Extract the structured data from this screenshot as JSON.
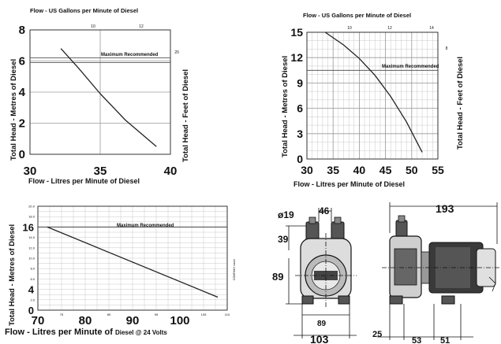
{
  "chart_data": [
    {
      "type": "line",
      "title": "Flow - US Gallons per Minute of Diesel",
      "xlabel": "Flow - Litres per Minute of Diesel",
      "ylabel": "Total Head - Metres of Diesel",
      "y2label": "Total Head - Feet of Diesel",
      "xlim": [
        30,
        40
      ],
      "ylim": [
        0,
        8
      ],
      "x_ticks": [
        "30",
        "35",
        "40"
      ],
      "y_ticks": [
        "0",
        "2",
        "4",
        "6",
        "8"
      ],
      "top_ticks": [
        "10",
        "12"
      ],
      "right_ticks": [
        "20"
      ],
      "recommended_label": "Maximum Recommended",
      "recommended_y": 6.2,
      "series": [
        {
          "x": [
            32.2,
            33.5,
            35,
            36.8,
            39
          ],
          "y": [
            6.8,
            5.5,
            3.9,
            2.2,
            0.5
          ]
        }
      ]
    },
    {
      "type": "line",
      "title": "Flow - US Gallons per Minute of Diesel",
      "xlabel": "Flow - Litres per Minute of Diesel",
      "ylabel": "Total Head - Metres of Diesel",
      "y2label": "Total Head - Feet of Diesel",
      "xlim": [
        30,
        55
      ],
      "ylim": [
        0,
        15
      ],
      "x_ticks": [
        "30",
        "35",
        "40",
        "45",
        "50",
        "55"
      ],
      "y_ticks": [
        "0",
        "3",
        "6",
        "9",
        "12",
        "15"
      ],
      "top_ticks": [
        "10",
        "12",
        "14"
      ],
      "right_ticks": [
        "8"
      ],
      "recommended_label": "Maximum Recommended",
      "recommended_y": 10.5,
      "series": [
        {
          "x": [
            33.5,
            37,
            40,
            43,
            46,
            49,
            52
          ],
          "y": [
            15,
            13.5,
            11.9,
            9.9,
            7.4,
            4.4,
            0.8
          ]
        }
      ]
    },
    {
      "type": "line",
      "title": "",
      "xlabel": "Flow - Litres per Minute of",
      "xlabel_small": "Diesel @ 24 Volts",
      "ylabel": "Total Head - Metres of Diesel",
      "y2label": "COMPANY name",
      "xlim": [
        70,
        110
      ],
      "ylim": [
        0,
        20
      ],
      "x_ticks": [
        "70",
        "80",
        "90",
        "100"
      ],
      "x_minor_ticks": [
        "75",
        "85",
        "95",
        "105",
        "110"
      ],
      "y_ticks": [
        "16",
        "4",
        "0"
      ],
      "y_minor_ticks": [
        "20.0",
        "18.0",
        "14.0",
        "12.0",
        "10.0",
        "8.0",
        "6.0",
        "2.0"
      ],
      "recommended_label": "Maximum Recommended",
      "recommended_y": 16,
      "series": [
        {
          "x": [
            72,
            108
          ],
          "y": [
            16,
            2.5
          ]
        }
      ]
    }
  ],
  "drawing": {
    "dimensions": [
      "46",
      "ø19",
      "39",
      "89",
      "89",
      "103",
      "193",
      "25",
      "53",
      "51"
    ]
  }
}
